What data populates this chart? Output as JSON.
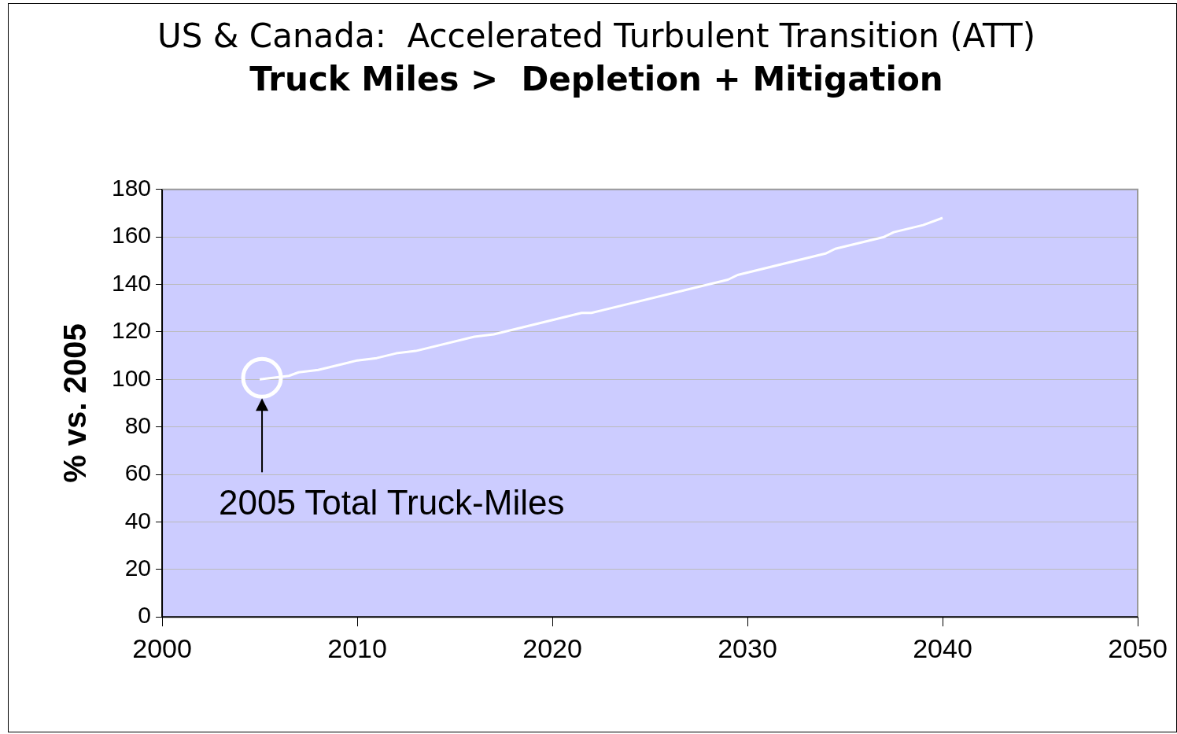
{
  "chart_data": {
    "type": "line",
    "title": "US & Canada:  Accelerated Turbulent Transition (ATT)",
    "subtitle": "Truck Miles >  Depletion + Mitigation",
    "ylabel": "% vs. 2005",
    "x": [
      2005,
      2006.5,
      2007,
      2008,
      2009.5,
      2010,
      2011,
      2012,
      2013,
      2016,
      2017,
      2021.5,
      2022,
      2029,
      2029.5,
      2034,
      2034.5,
      2037,
      2037.5,
      2039,
      2040
    ],
    "series": [
      {
        "color": "#ffffff",
        "values": [
          100,
          101.5,
          103,
          104,
          107,
          108,
          109,
          111,
          112,
          118,
          119,
          128,
          128,
          142,
          144,
          153,
          155,
          160,
          162,
          165,
          168
        ]
      }
    ],
    "xlim": [
      2000,
      2050
    ],
    "xticks": [
      2000,
      2010,
      2020,
      2030,
      2040,
      2050
    ],
    "ylim": [
      0,
      180
    ],
    "yticks": [
      0,
      20,
      40,
      60,
      80,
      100,
      120,
      140,
      160,
      180
    ],
    "grid": "y",
    "legend": false,
    "marker": "none",
    "line_style": "solid",
    "annotations": [
      "2005 Total Truck-Miles"
    ]
  }
}
